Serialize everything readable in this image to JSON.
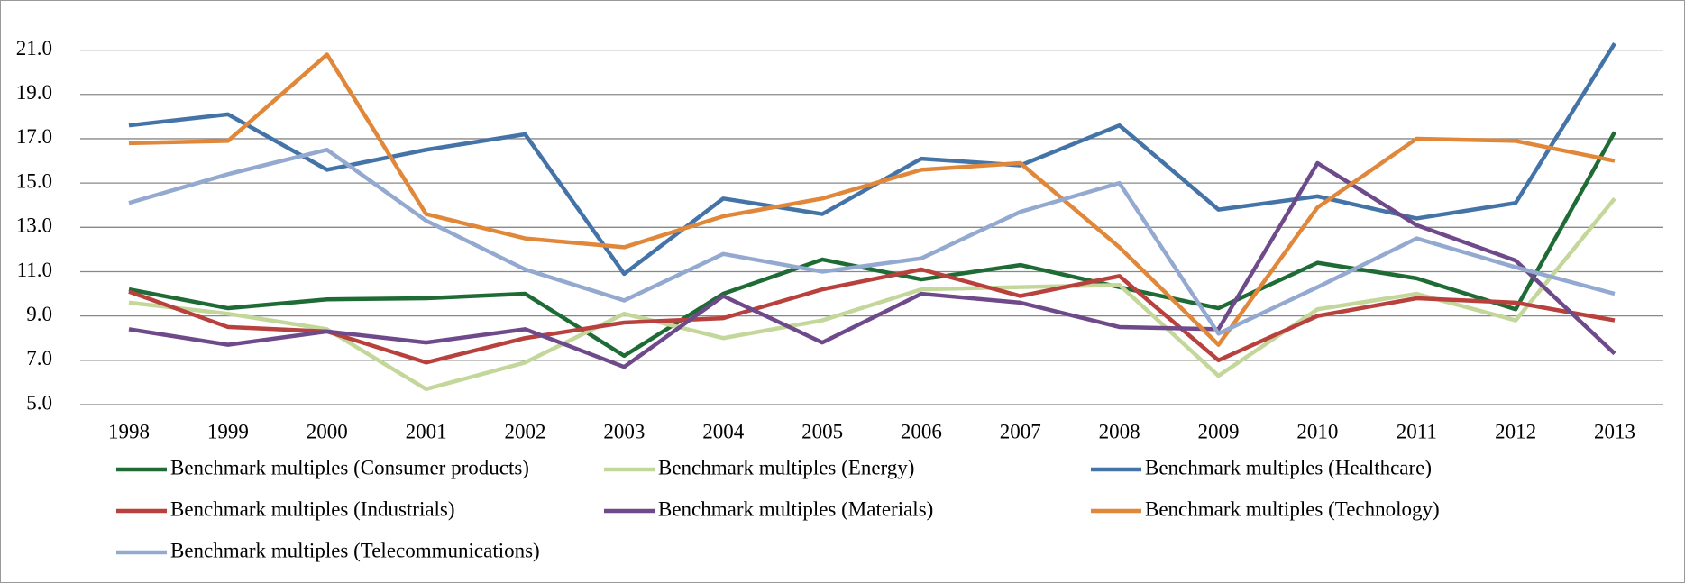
{
  "chart_data": {
    "type": "line",
    "categories": [
      "1998",
      "1999",
      "2000",
      "2001",
      "2002",
      "2003",
      "2004",
      "2005",
      "2006",
      "2007",
      "2008",
      "2009",
      "2010",
      "2011",
      "2012",
      "2013"
    ],
    "series": [
      {
        "name": "Benchmark multiples (Consumer products)",
        "color": "#1e6b35",
        "values": [
          10.2,
          9.35,
          9.75,
          9.8,
          10.0,
          7.2,
          10.0,
          11.55,
          10.65,
          11.3,
          10.3,
          9.35,
          11.4,
          10.7,
          9.3,
          17.3
        ]
      },
      {
        "name": "Benchmark multiples (Energy)",
        "color": "#c4d79b",
        "values": [
          9.6,
          9.1,
          8.4,
          5.7,
          6.9,
          9.1,
          8.0,
          8.8,
          10.2,
          10.3,
          10.4,
          6.3,
          9.3,
          10.0,
          8.8,
          14.3
        ]
      },
      {
        "name": "Benchmark multiples (Healthcare)",
        "color": "#4473a8",
        "values": [
          17.6,
          18.1,
          15.6,
          16.5,
          17.2,
          10.9,
          14.3,
          13.6,
          16.1,
          15.8,
          17.6,
          13.8,
          14.4,
          13.4,
          14.1,
          21.3
        ]
      },
      {
        "name": "Benchmark multiples (Industrials)",
        "color": "#b8413d",
        "values": [
          10.1,
          8.5,
          8.3,
          6.9,
          8.0,
          8.7,
          8.9,
          10.2,
          11.1,
          9.9,
          10.8,
          7.0,
          9.0,
          9.8,
          9.6,
          8.8
        ]
      },
      {
        "name": "Benchmark multiples (Materials)",
        "color": "#6e4a8a",
        "values": [
          8.4,
          7.7,
          8.3,
          7.8,
          8.4,
          6.7,
          9.9,
          7.8,
          10.0,
          9.6,
          8.5,
          8.4,
          15.9,
          13.1,
          11.5,
          7.3
        ]
      },
      {
        "name": "Benchmark multiples (Technology)",
        "color": "#e0873a",
        "values": [
          16.8,
          16.9,
          20.8,
          13.6,
          12.5,
          12.1,
          13.5,
          14.3,
          15.6,
          15.9,
          12.1,
          7.7,
          13.9,
          17.0,
          16.9,
          16.0
        ]
      },
      {
        "name": "Benchmark multiples (Telecommunications)",
        "color": "#93a9d0",
        "values": [
          14.1,
          15.4,
          16.5,
          13.3,
          11.1,
          9.7,
          11.8,
          11.0,
          11.6,
          13.7,
          15.0,
          8.2,
          10.3,
          12.5,
          11.2,
          10.0
        ]
      }
    ],
    "ylim": [
      5,
      22
    ],
    "yticks": [
      {
        "value": 5,
        "label": "5.0"
      },
      {
        "value": 7,
        "label": "7.0"
      },
      {
        "value": 9,
        "label": "9.0"
      },
      {
        "value": 11,
        "label": "11.0"
      },
      {
        "value": 13,
        "label": "13.0"
      },
      {
        "value": 15,
        "label": "15.0"
      },
      {
        "value": 17,
        "label": "17.0"
      },
      {
        "value": 19,
        "label": "19.0"
      },
      {
        "value": 21,
        "label": "21.0"
      }
    ],
    "grid": true
  }
}
